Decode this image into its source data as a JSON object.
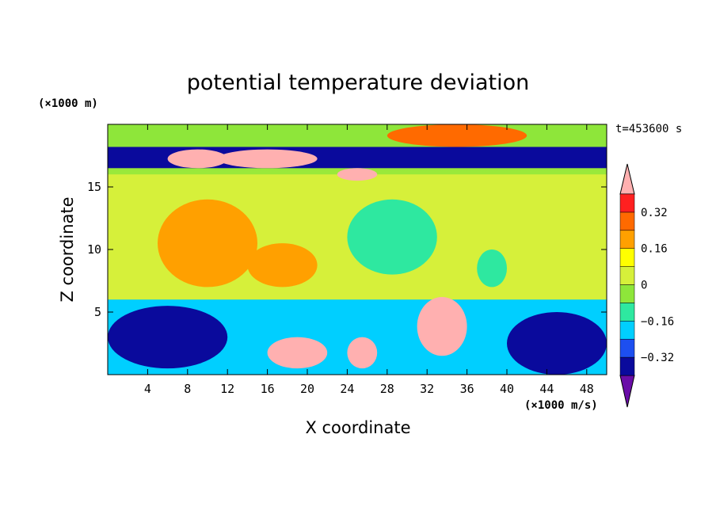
{
  "chart_data": {
    "type": "heatmap",
    "title": "potential temperature deviation",
    "time_label": "t=453600 s",
    "xlabel": "X coordinate",
    "ylabel": "Z coordinate",
    "x_unit": "(×1000 m/s)",
    "y_unit": "(×1000 m)",
    "xlim": [
      0,
      50
    ],
    "ylim": [
      0,
      20
    ],
    "x_ticks": [
      4,
      8,
      12,
      16,
      20,
      24,
      28,
      32,
      36,
      40,
      44,
      48
    ],
    "y_ticks": [
      5,
      10,
      15
    ],
    "colorbar": {
      "levels": [
        -0.4,
        -0.32,
        -0.24,
        -0.16,
        -0.08,
        0,
        0.08,
        0.16,
        0.24,
        0.32,
        0.4
      ],
      "tick_labels": [
        "0.32",
        "0.16",
        "0",
        "−0.16",
        "−0.32"
      ],
      "tick_values": [
        0.32,
        0.16,
        0,
        -0.16,
        -0.32
      ],
      "colors": [
        "#6a0da8",
        "#0a0a9c",
        "#1d4ff0",
        "#00cfff",
        "#2ee8a0",
        "#8ee63a",
        "#d6f03a",
        "#ffff00",
        "#ffa000",
        "#ff6a00",
        "#ff2020",
        "#ffb0b0"
      ]
    },
    "regions": [
      {
        "x": [
          0,
          50
        ],
        "z": [
          0,
          6
        ],
        "value": -0.2
      },
      {
        "x": [
          0,
          50
        ],
        "z": [
          6,
          16
        ],
        "value": 0.05
      },
      {
        "x": [
          0,
          50
        ],
        "z": [
          16.5,
          18.2
        ],
        "value": -0.4
      },
      {
        "x": [
          0,
          50
        ],
        "z": [
          18.2,
          20
        ],
        "value": -0.05
      },
      {
        "x": [
          28,
          42
        ],
        "z": [
          18.2,
          20
        ],
        "value": 0.3
      },
      {
        "x": [
          5,
          15
        ],
        "z": [
          7,
          14
        ],
        "value": 0.2
      },
      {
        "x": [
          14,
          21
        ],
        "z": [
          7,
          10.5
        ],
        "value": 0.2
      },
      {
        "x": [
          24,
          33
        ],
        "z": [
          8,
          14
        ],
        "value": -0.12
      },
      {
        "x": [
          37,
          40
        ],
        "z": [
          7,
          10
        ],
        "value": -0.16
      },
      {
        "x": [
          31,
          36
        ],
        "z": [
          1.5,
          6.2
        ],
        "value": 0.45
      },
      {
        "x": [
          16,
          22
        ],
        "z": [
          0.5,
          3
        ],
        "value": 0.45
      },
      {
        "x": [
          24,
          27
        ],
        "z": [
          0.5,
          3
        ],
        "value": 0.45
      },
      {
        "x": [
          6,
          12
        ],
        "z": [
          16.5,
          18
        ],
        "value": 0.45
      },
      {
        "x": [
          11,
          21
        ],
        "z": [
          16.5,
          18
        ],
        "value": 0.45
      },
      {
        "x": [
          23,
          27
        ],
        "z": [
          15.5,
          16.5
        ],
        "value": 0.45
      },
      {
        "x": [
          0,
          12
        ],
        "z": [
          0.5,
          5.5
        ],
        "value": -0.4
      },
      {
        "x": [
          40,
          50
        ],
        "z": [
          0,
          5
        ],
        "value": -0.4
      }
    ]
  }
}
